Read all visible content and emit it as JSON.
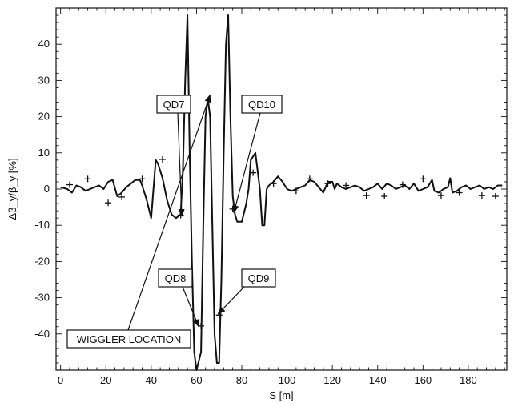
{
  "chart_data": {
    "type": "line",
    "title": "",
    "xlabel": "S [m]",
    "ylabel": "Δβ_y/β_y [%]",
    "xlim": [
      -2,
      197
    ],
    "ylim": [
      -50,
      50
    ],
    "xticks": [
      0,
      20,
      40,
      60,
      80,
      100,
      120,
      140,
      160,
      180
    ],
    "yticks": [
      -40,
      -30,
      -20,
      -10,
      0,
      10,
      20,
      30,
      40
    ],
    "grid": false,
    "legend": "none",
    "series": [
      {
        "style": "line",
        "x": [
          0,
          3,
          5,
          7,
          9,
          11,
          13,
          15,
          17,
          19,
          21,
          23,
          25,
          27,
          29,
          31,
          33,
          35,
          36,
          38,
          40,
          42,
          43,
          45,
          47,
          49,
          51,
          53,
          54,
          55,
          56,
          57,
          58,
          59,
          60,
          62,
          63,
          64,
          65,
          66,
          67,
          68,
          69,
          70,
          71,
          72,
          73,
          74,
          75,
          76,
          77,
          78,
          80,
          82,
          83,
          84,
          86,
          88,
          89,
          90,
          91,
          92,
          94,
          96,
          98,
          100,
          102,
          104,
          106,
          108,
          110,
          112,
          114,
          116,
          118,
          120,
          121,
          122,
          124,
          126,
          128,
          130,
          132,
          134,
          136,
          138,
          140,
          142,
          144,
          146,
          148,
          150,
          152,
          154,
          156,
          158,
          160,
          162,
          164,
          165,
          167,
          169,
          171,
          172,
          173,
          175,
          177,
          179,
          181,
          183,
          185,
          187,
          189,
          191,
          193,
          195
        ],
        "y": [
          0.5,
          0,
          -1,
          1,
          0.5,
          -0.5,
          0,
          0.5,
          1,
          0,
          2,
          2.5,
          -2,
          -1,
          0.5,
          1.5,
          2.5,
          2.5,
          1,
          -3,
          -8,
          8,
          7,
          3,
          -3,
          -7,
          -8,
          -7,
          5,
          30,
          48,
          10,
          -20,
          -45,
          -50,
          -45,
          -10,
          20,
          25,
          20,
          -10,
          -40,
          -48,
          -48,
          -25,
          10,
          40,
          48,
          20,
          -2,
          -7,
          -9,
          -9,
          -4,
          0,
          8,
          10,
          0,
          -10,
          -10,
          0,
          1,
          2,
          3.5,
          2,
          0,
          -0.5,
          0,
          0.5,
          1,
          2.5,
          2,
          0.5,
          -1,
          2,
          2,
          0,
          1.5,
          0.5,
          0,
          0.5,
          1,
          0.5,
          -0.5,
          0,
          0.5,
          1.5,
          0,
          1.5,
          1,
          0,
          0.5,
          1,
          0,
          1.5,
          -0.5,
          0,
          0.5,
          2.5,
          -0.5,
          -1,
          0,
          0.5,
          3,
          -1,
          -0.5,
          0.5,
          1,
          0,
          0.5,
          1,
          0,
          0.5,
          0,
          1,
          1
        ]
      },
      {
        "style": "markers",
        "marker": "+",
        "x": [
          4,
          12,
          21,
          27,
          36,
          45,
          53,
          62,
          70,
          76,
          85,
          94,
          104,
          110,
          118,
          126,
          135,
          143,
          151,
          160,
          168,
          176,
          186,
          192
        ],
        "y": [
          1.2,
          2.8,
          -3.8,
          -2.2,
          2.8,
          8.2,
          -7.2,
          -37.8,
          -34.8,
          -5.5,
          4.5,
          1.5,
          -0.5,
          2.8,
          1.5,
          1.0,
          -1.8,
          -2.0,
          1.2,
          2.8,
          -1.8,
          -1.0,
          -1.8,
          -2.0
        ]
      }
    ],
    "annotations": [
      {
        "label": "QD7",
        "target": [
          53.5,
          -7.5
        ]
      },
      {
        "label": "QD10",
        "target": [
          76.5,
          -6.5
        ]
      },
      {
        "label": "QD8",
        "target": [
          61,
          -38
        ]
      },
      {
        "label": "QD9",
        "target": [
          69.5,
          -34.5
        ]
      },
      {
        "label": "WIGGLER LOCATION",
        "target": [
          66,
          26
        ]
      }
    ]
  }
}
